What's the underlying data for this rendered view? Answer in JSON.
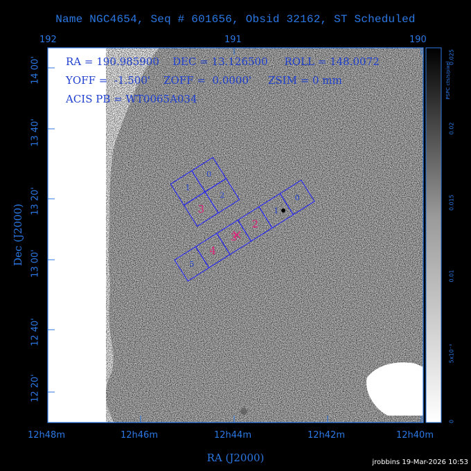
{
  "title": "Name NGC4654, Seq # 601656, Obsid 32162, ST Scheduled",
  "top_axis_ticks": [
    "192",
    "191",
    "190"
  ],
  "bottom_axis_ticks": [
    "12h48m",
    "12h46m",
    "12h44m",
    "12h42m",
    "12h40m"
  ],
  "left_axis_ticks": [
    "14 00'",
    "13 40'",
    "13 20'",
    "13 00'",
    "12 40'",
    "12 20'"
  ],
  "xlabel": "RA (J2000)",
  "ylabel": "Dec (J2000)",
  "info": {
    "line1": "RA = 190.985900    DEC = 13.126500     ROLL = 148.0072",
    "line2": "YOFF =  -1.500'    ZOFF =  0.0000'     ZSIM = 0 mm",
    "line3": "ACIS PB = WT0065A034"
  },
  "colorbar": {
    "label": "PSPC cts/s/pixel",
    "ticks": [
      "0",
      "5x10⁻³",
      "0.01",
      "0.015",
      "0.02",
      "0.025"
    ]
  },
  "chips_i": [
    {
      "label": "0",
      "color": "#1e3fcf"
    },
    {
      "label": "1",
      "color": "#1e3fcf"
    },
    {
      "label": "2",
      "color": "#1e3fcf"
    },
    {
      "label": "3",
      "color": "#e0207a"
    }
  ],
  "chips_s": [
    {
      "label": "0",
      "color": "#1e3fcf"
    },
    {
      "label": "1",
      "color": "#1e3fcf"
    },
    {
      "label": "2",
      "color": "#e0207a"
    },
    {
      "label": "3",
      "color": "#e0207a"
    },
    {
      "label": "4",
      "color": "#e0207a"
    },
    {
      "label": "5",
      "color": "#1e3fcf"
    }
  ],
  "credit": "jrobbins 19-Mar-2026 10:53",
  "colors": {
    "axis": "#2b78e4",
    "chip_outline": "#1e1eff",
    "text_dark": "#1e3fcf",
    "highlight": "#e0207a",
    "background": "#000000"
  }
}
